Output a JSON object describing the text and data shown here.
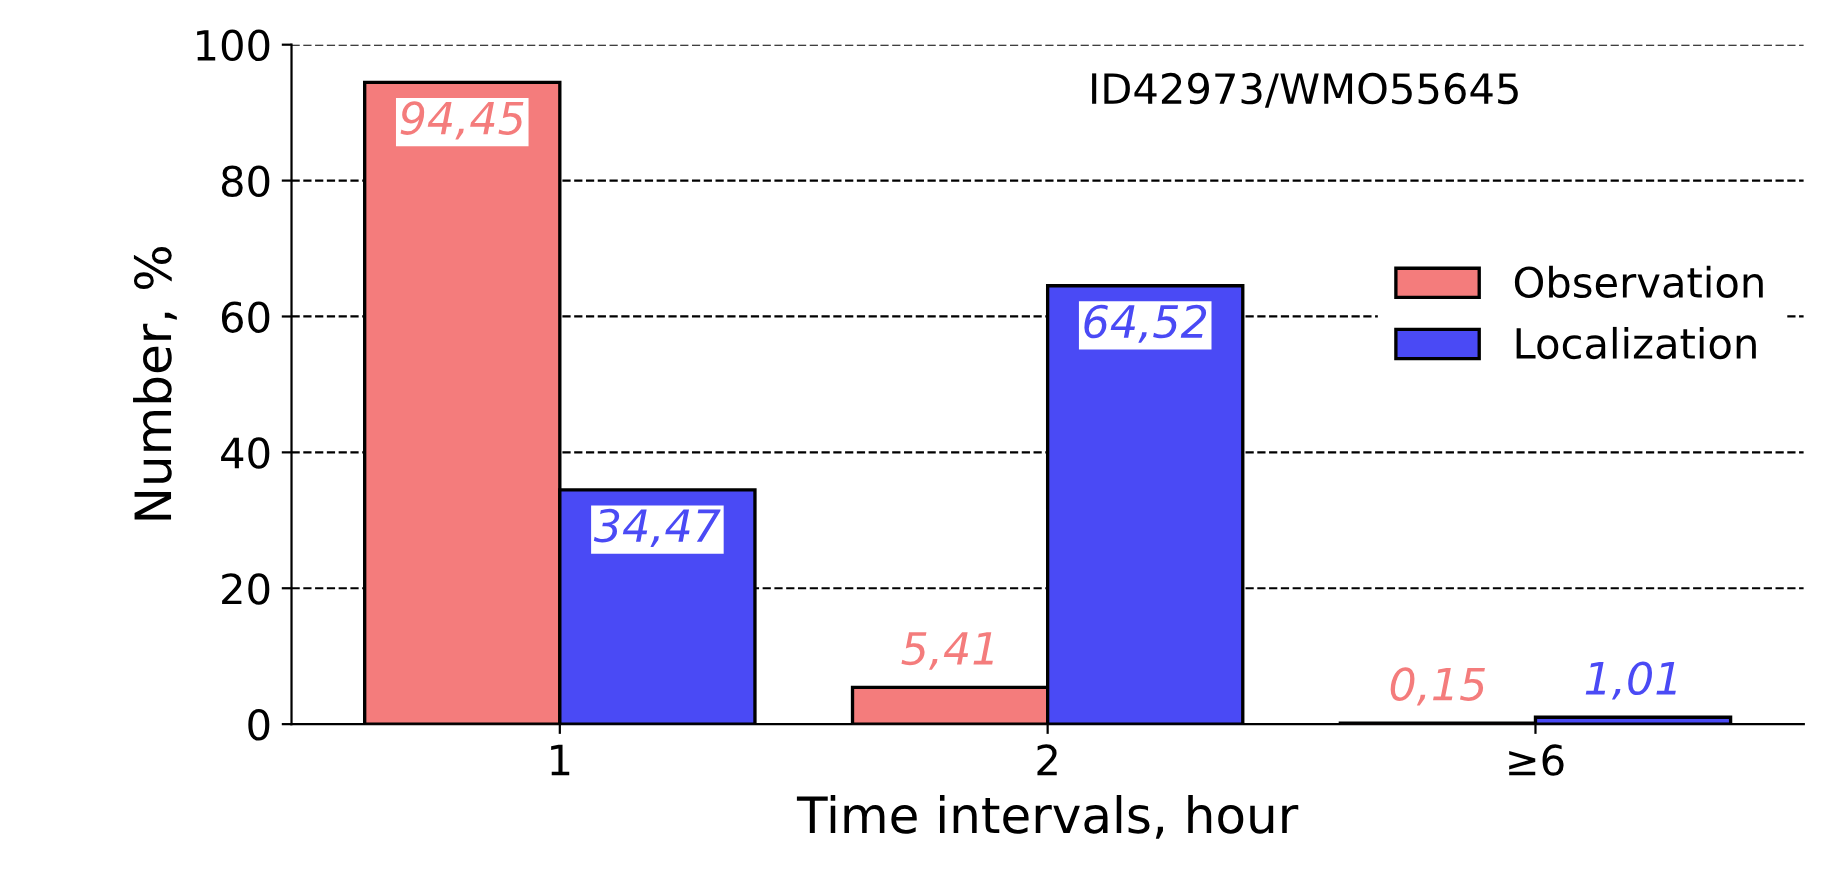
{
  "chart_data": {
    "type": "bar",
    "xlabel": "Time intervals, hour",
    "ylabel": "Number, %",
    "categories": [
      "1",
      "2",
      "≥6"
    ],
    "series": [
      {
        "name": "Observation",
        "color": "#f47c7c",
        "values": [
          94.45,
          5.41,
          0.15
        ],
        "value_labels": [
          "94,45",
          "5,41",
          "0,15"
        ]
      },
      {
        "name": "Localization",
        "color": "#4a4af5",
        "values": [
          34.47,
          64.52,
          1.01
        ],
        "value_labels": [
          "34,47",
          "64,52",
          "1,01"
        ]
      }
    ],
    "annotations": [
      "ID42973/WMO55645"
    ],
    "ylim": [
      0,
      100
    ],
    "yticks": [
      0,
      20,
      40,
      60,
      80,
      100
    ],
    "grid": "y",
    "legend": "center right"
  }
}
